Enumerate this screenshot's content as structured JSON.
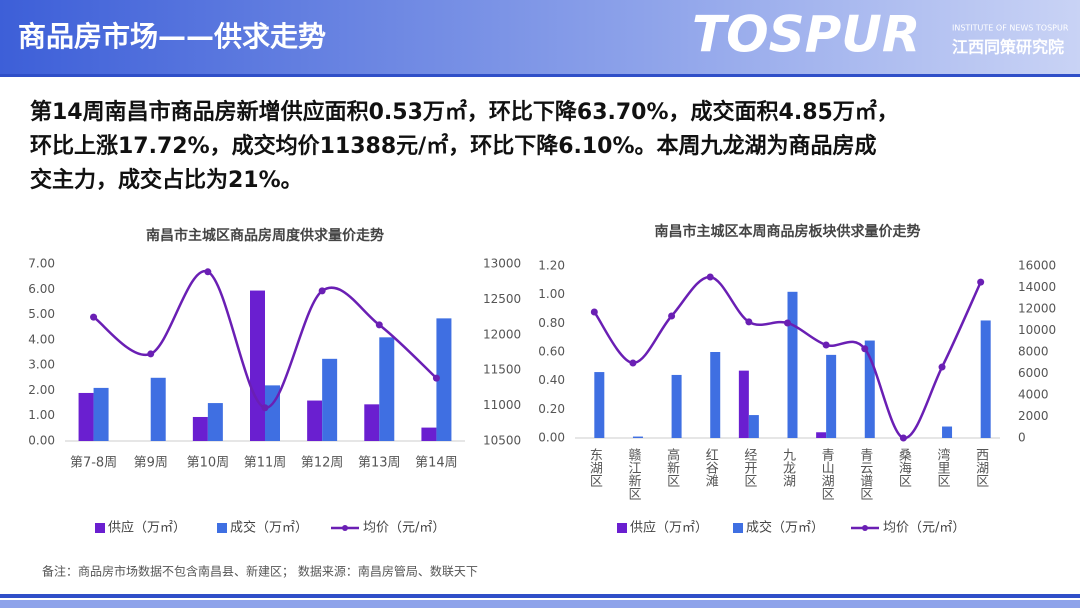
{
  "header": {
    "title": "商品房市场——供求走势",
    "logo": "TOSPUR",
    "logo_subtitle": "INSTITUTE OF NEWS TOSPUR",
    "logo_org": "江西同策研究院"
  },
  "summary": [
    "第14周南昌市商品房新增供应面积0.53万㎡，环比下降63.70%，成交面积4.85万㎡，",
    "环比上涨17.72%，成交均价11388元/㎡，环比下降6.10%。本周九龙湖为商品房成",
    "交主力，成交占比为21%。"
  ],
  "footnote": "备注：商品房市场数据不包含南昌县、新建区；  数据来源：南昌房管局、数联天下",
  "chart_data": [
    {
      "type": "bar",
      "title": "南昌市主城区商品房周度供求量价走势",
      "categories": [
        "第7-8周",
        "第9周",
        "第10周",
        "第11周",
        "第12周",
        "第13周",
        "第14周"
      ],
      "series": [
        {
          "name": "供应（万㎡）",
          "color": "#6a1fd0",
          "values": [
            1.9,
            0,
            0.95,
            5.95,
            1.6,
            1.45,
            0.53
          ]
        },
        {
          "name": "成交（万㎡）",
          "color": "#3f6fe2",
          "values": [
            2.1,
            2.5,
            1.5,
            2.2,
            3.25,
            4.1,
            4.85
          ]
        },
        {
          "name": "均价（元/㎡）",
          "color": "#6a1fb4",
          "type": "line",
          "axis": "y2",
          "values": [
            12250,
            11730,
            12890,
            10970,
            12620,
            12140,
            11388
          ]
        }
      ],
      "ylim": [
        0,
        7
      ],
      "yticks": [
        {
          "value": 0,
          "label": "0.00"
        },
        {
          "value": 1,
          "label": "1.00"
        },
        {
          "value": 2,
          "label": "2.00"
        },
        {
          "value": 3,
          "label": "3.00"
        },
        {
          "value": 4,
          "label": "4.00"
        },
        {
          "value": 5,
          "label": "5.00"
        },
        {
          "value": 6,
          "label": "6.00"
        },
        {
          "value": 7,
          "label": "7.00"
        }
      ],
      "y2lim": [
        10500,
        13000
      ],
      "y2ticks": [
        10500,
        11000,
        11500,
        12000,
        12500,
        13000
      ],
      "legend": "bottom"
    },
    {
      "type": "bar",
      "title": "南昌市主城区本周商品房板块供求量价走势",
      "categories": [
        "东湖区",
        "赣江新区",
        "高新区",
        "红谷滩",
        "经开区",
        "九龙湖",
        "青山湖区",
        "青云谱区",
        "桑海区",
        "湾里区",
        "西湖区"
      ],
      "series": [
        {
          "name": "供应（万㎡）",
          "color": "#6a1fd0",
          "values": [
            0,
            0,
            0,
            0,
            0.47,
            0,
            0.04,
            0,
            0,
            0,
            0
          ]
        },
        {
          "name": "成交（万㎡）",
          "color": "#3f6fe2",
          "values": [
            0.46,
            0.01,
            0.44,
            0.6,
            0.16,
            1.02,
            0.58,
            0.68,
            0,
            0.08,
            0.82
          ]
        },
        {
          "name": "均价（元/㎡）",
          "color": "#6a1fb4",
          "type": "line",
          "axis": "y2",
          "values": [
            11720,
            6980,
            11350,
            14980,
            10800,
            10700,
            8650,
            8300,
            0,
            6600,
            14500
          ]
        }
      ],
      "ylim": [
        0,
        1.2
      ],
      "yticks": [
        {
          "value": 0,
          "label": "0.00"
        },
        {
          "value": 0.2,
          "label": "0.20"
        },
        {
          "value": 0.4,
          "label": "0.40"
        },
        {
          "value": 0.6,
          "label": "0.60"
        },
        {
          "value": 0.8,
          "label": "0.80"
        },
        {
          "value": 1,
          "label": "1.00"
        },
        {
          "value": 1.2,
          "label": "1.20"
        }
      ],
      "y2lim": [
        0,
        16000
      ],
      "y2ticks": [
        0,
        2000,
        4000,
        6000,
        8000,
        10000,
        12000,
        14000,
        16000
      ],
      "legend": "bottom"
    }
  ]
}
